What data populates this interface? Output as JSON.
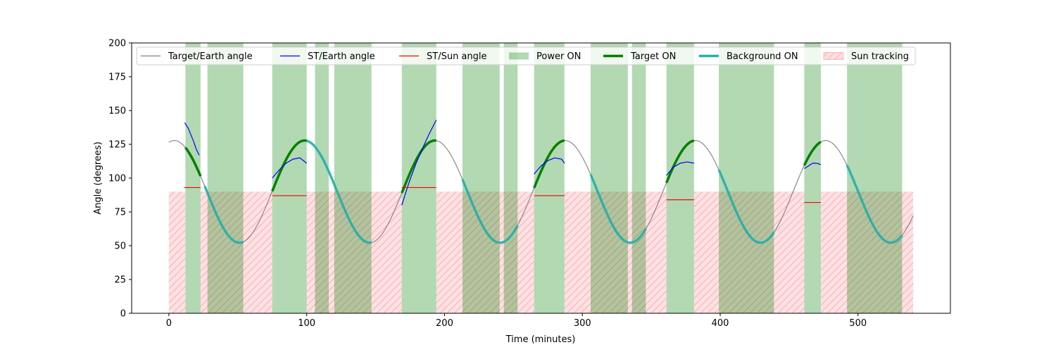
{
  "chart_data": {
    "type": "line",
    "xlabel": "Time (minutes)",
    "ylabel": "Angle (degrees)",
    "xlim": [
      -27,
      567
    ],
    "ylim": [
      0,
      200
    ],
    "xticks": [
      0,
      100,
      200,
      300,
      400,
      500
    ],
    "yticks": [
      0,
      25,
      50,
      75,
      100,
      125,
      150,
      175,
      200
    ],
    "grid": false,
    "legend_position": "top",
    "legend": [
      {
        "label": "Target/Earth angle",
        "kind": "line",
        "color": "#808080"
      },
      {
        "label": "ST/Earth angle",
        "kind": "line",
        "color": "#0000ff"
      },
      {
        "label": "ST/Sun angle",
        "kind": "line",
        "color": "#ff0000"
      },
      {
        "label": "Power ON",
        "kind": "patch",
        "color": "#b2d8b2"
      },
      {
        "label": "Target ON",
        "kind": "thickline",
        "color": "#008000"
      },
      {
        "label": "Background ON",
        "kind": "thickline",
        "color": "#20b2aa"
      },
      {
        "label": "Sun tracking",
        "kind": "hatch",
        "color": "#ffdde0"
      }
    ],
    "target_earth_angle": {
      "mean": 90,
      "amplitude": 37.8,
      "period_min": 94.5,
      "phase_ref_min": 4,
      "x_range": [
        0,
        540
      ]
    },
    "power_on_intervals": [
      [
        12,
        23
      ],
      [
        28,
        54
      ],
      [
        75,
        100
      ],
      [
        106,
        116
      ],
      [
        120,
        147
      ],
      [
        169,
        194
      ],
      [
        213,
        240
      ],
      [
        243,
        253
      ],
      [
        265,
        287
      ],
      [
        306,
        333
      ],
      [
        336,
        346
      ],
      [
        361,
        381
      ],
      [
        399,
        439
      ],
      [
        461,
        473
      ],
      [
        492,
        532
      ]
    ],
    "sun_tracking_intervals": [
      [
        0,
        12
      ],
      [
        23,
        75
      ],
      [
        100,
        169
      ],
      [
        194,
        265
      ],
      [
        287,
        361
      ],
      [
        381,
        461
      ],
      [
        473,
        540
      ]
    ],
    "sun_tracking_max_angle": 90,
    "target_on_intervals": [
      [
        12,
        23
      ],
      [
        75,
        100
      ],
      [
        169,
        194
      ],
      [
        265,
        287
      ],
      [
        361,
        381
      ],
      [
        461,
        473
      ]
    ],
    "background_on_intervals": [
      [
        26,
        54
      ],
      [
        100,
        147
      ],
      [
        213,
        253
      ],
      [
        306,
        346
      ],
      [
        399,
        439
      ],
      [
        492,
        532
      ]
    ],
    "st_earth_segments": [
      {
        "x": [
          11.5,
          14,
          16,
          18,
          20,
          22
        ],
        "y": [
          141,
          137,
          132,
          127,
          121,
          117
        ]
      },
      {
        "x": [
          75,
          80,
          85,
          90,
          95,
          100
        ],
        "y": [
          100,
          106,
          111,
          114,
          115,
          111
        ]
      },
      {
        "x": [
          169,
          174,
          179,
          184,
          189,
          194
        ],
        "y": [
          80,
          96,
          110,
          122,
          133,
          143
        ]
      },
      {
        "x": [
          265,
          270,
          275,
          280,
          285,
          287
        ],
        "y": [
          103,
          109,
          113,
          115,
          114,
          111
        ]
      },
      {
        "x": [
          361,
          366,
          371,
          376,
          381
        ],
        "y": [
          102,
          108,
          111,
          112,
          111
        ]
      },
      {
        "x": [
          461,
          464,
          467,
          470,
          473
        ],
        "y": [
          107,
          109,
          111,
          111,
          110
        ]
      }
    ],
    "st_sun_segments": [
      {
        "x": [
          11,
          23
        ],
        "y": [
          93,
          93
        ]
      },
      {
        "x": [
          75,
          100
        ],
        "y": [
          87,
          87
        ]
      },
      {
        "x": [
          169,
          194
        ],
        "y": [
          93,
          93
        ]
      },
      {
        "x": [
          265,
          287
        ],
        "y": [
          87,
          87
        ]
      },
      {
        "x": [
          361,
          381
        ],
        "y": [
          84,
          84
        ]
      },
      {
        "x": [
          461,
          473
        ],
        "y": [
          82,
          82
        ]
      }
    ]
  }
}
